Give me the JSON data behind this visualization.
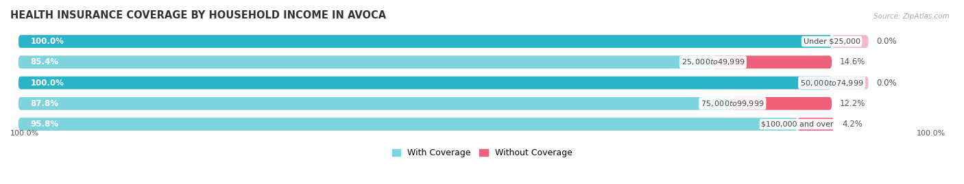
{
  "title": "HEALTH INSURANCE COVERAGE BY HOUSEHOLD INCOME IN AVOCA",
  "source": "Source: ZipAtlas.com",
  "categories": [
    "Under $25,000",
    "$25,000 to $49,999",
    "$50,000 to $74,999",
    "$75,000 to $99,999",
    "$100,000 and over"
  ],
  "with_coverage": [
    100.0,
    85.4,
    100.0,
    87.8,
    95.8
  ],
  "without_coverage": [
    0.0,
    14.6,
    0.0,
    12.2,
    4.2
  ],
  "color_with_full": "#2bb5c8",
  "color_with_partial": "#7dd4df",
  "color_without_nonzero": "#f0607a",
  "color_without_zero": "#f5b8c8",
  "bar_bg_color": "#e8e8ea",
  "bar_height": 0.62,
  "title_fontsize": 10.5,
  "label_fontsize": 8.5,
  "pct_fontsize": 8.5,
  "tick_fontsize": 8,
  "legend_fontsize": 9,
  "background_color": "#ffffff",
  "x_left_label": "100.0%",
  "x_right_label": "100.0%"
}
